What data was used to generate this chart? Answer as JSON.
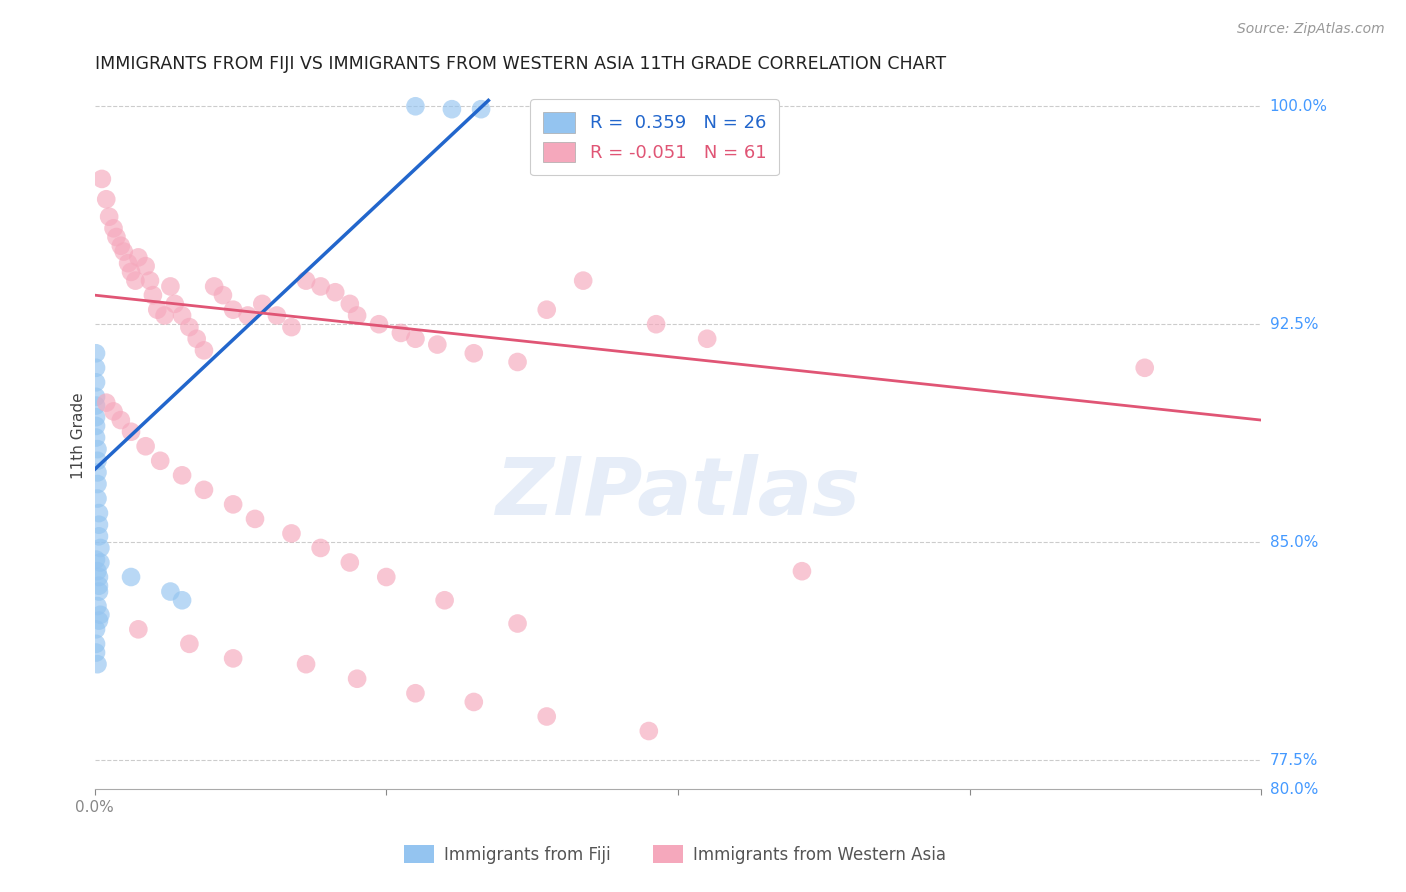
{
  "title": "IMMIGRANTS FROM FIJI VS IMMIGRANTS FROM WESTERN ASIA 11TH GRADE CORRELATION CHART",
  "source": "Source: ZipAtlas.com",
  "ylabel": "11th Grade",
  "fiji_color": "#94c4f0",
  "western_asia_color": "#f5a8bc",
  "fiji_line_color": "#2266cc",
  "western_asia_line_color": "#e05575",
  "fiji_R": 0.359,
  "fiji_N": 26,
  "western_asia_R": -0.051,
  "western_asia_N": 61,
  "background_color": "#ffffff",
  "grid_color": "#cccccc",
  "xlim": [
    0.0,
    0.8
  ],
  "ylim": [
    0.765,
    1.008
  ],
  "right_yticks": [
    1.0,
    0.925,
    0.85,
    0.775
  ],
  "right_yticklabels": [
    "100.0%",
    "92.5%",
    "85.0%",
    "77.5%"
  ],
  "fiji_x": [
    0.001,
    0.001,
    0.001,
    0.001,
    0.001,
    0.001,
    0.001,
    0.001,
    0.002,
    0.002,
    0.002,
    0.002,
    0.002,
    0.003,
    0.003,
    0.003,
    0.004,
    0.004,
    0.22,
    0.245,
    0.265
  ],
  "fiji_y": [
    0.915,
    0.91,
    0.905,
    0.9,
    0.897,
    0.893,
    0.89,
    0.886,
    0.882,
    0.878,
    0.874,
    0.87,
    0.865,
    0.86,
    0.856,
    0.852,
    0.848,
    0.843,
    1.0,
    0.999,
    0.999
  ],
  "fiji_x_low": [
    0.001,
    0.002,
    0.003,
    0.003,
    0.003,
    0.002,
    0.001,
    0.004,
    0.003,
    0.001,
    0.001,
    0.002,
    0.025,
    0.052,
    0.06
  ],
  "fiji_y_low": [
    0.844,
    0.84,
    0.838,
    0.835,
    0.833,
    0.828,
    0.82,
    0.825,
    0.823,
    0.815,
    0.812,
    0.808,
    0.838,
    0.833,
    0.83
  ],
  "western_asia_x": [
    0.005,
    0.008,
    0.01,
    0.013,
    0.015,
    0.018,
    0.02,
    0.023,
    0.025,
    0.028,
    0.03,
    0.035,
    0.038,
    0.04,
    0.043,
    0.048,
    0.052,
    0.055,
    0.06,
    0.065,
    0.07,
    0.075,
    0.082,
    0.088,
    0.095,
    0.105,
    0.115,
    0.125,
    0.135,
    0.145,
    0.155,
    0.165,
    0.175,
    0.18,
    0.195,
    0.21,
    0.22,
    0.235,
    0.26,
    0.29,
    0.31,
    0.335,
    0.385,
    0.42,
    0.485,
    0.72
  ],
  "western_asia_y": [
    0.975,
    0.968,
    0.962,
    0.958,
    0.955,
    0.952,
    0.95,
    0.946,
    0.943,
    0.94,
    0.948,
    0.945,
    0.94,
    0.935,
    0.93,
    0.928,
    0.938,
    0.932,
    0.928,
    0.924,
    0.92,
    0.916,
    0.938,
    0.935,
    0.93,
    0.928,
    0.932,
    0.928,
    0.924,
    0.94,
    0.938,
    0.936,
    0.932,
    0.928,
    0.925,
    0.922,
    0.92,
    0.918,
    0.915,
    0.912,
    0.93,
    0.94,
    0.925,
    0.92,
    0.84,
    0.91
  ],
  "western_asia_x2": [
    0.008,
    0.013,
    0.018,
    0.025,
    0.035,
    0.045,
    0.06,
    0.075,
    0.095,
    0.11,
    0.135,
    0.155,
    0.175,
    0.2,
    0.24,
    0.29
  ],
  "western_asia_y2": [
    0.898,
    0.895,
    0.892,
    0.888,
    0.883,
    0.878,
    0.873,
    0.868,
    0.863,
    0.858,
    0.853,
    0.848,
    0.843,
    0.838,
    0.83,
    0.822
  ],
  "western_asia_x3": [
    0.03,
    0.065,
    0.095,
    0.145,
    0.18,
    0.22,
    0.26,
    0.31,
    0.38
  ],
  "western_asia_y3": [
    0.82,
    0.815,
    0.81,
    0.808,
    0.803,
    0.798,
    0.795,
    0.79,
    0.785
  ]
}
